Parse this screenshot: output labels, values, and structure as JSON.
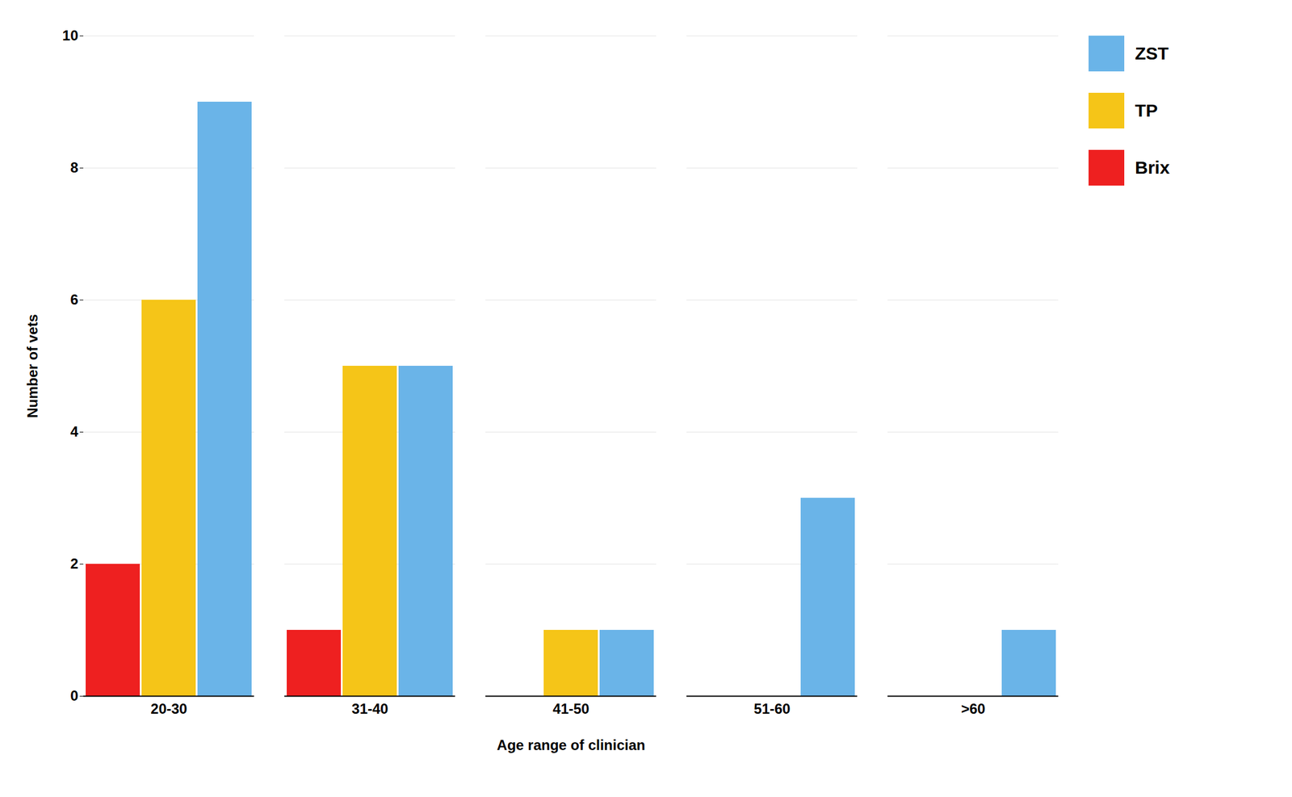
{
  "chart_data": {
    "type": "bar",
    "categories": [
      "20-30",
      "31-40",
      "41-50",
      "51-60",
      ">60"
    ],
    "series": [
      {
        "name": "Brix",
        "color": "#ee2020",
        "values": [
          2,
          1,
          0,
          0,
          0
        ]
      },
      {
        "name": "TP",
        "color": "#f5c518",
        "values": [
          6,
          5,
          1,
          0,
          0
        ]
      },
      {
        "name": "ZST",
        "color": "#6ab4e8",
        "values": [
          9,
          5,
          1,
          3,
          1
        ]
      }
    ],
    "xlabel": "Age range of clinician",
    "ylabel": "Number of vets",
    "ylim": [
      0,
      10
    ],
    "yticks": [
      0,
      2,
      4,
      6,
      8,
      10
    ],
    "grid": true,
    "legend": "right"
  }
}
